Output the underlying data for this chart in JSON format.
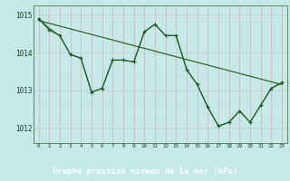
{
  "title": "Graphe pression niveau de la mer (hPa)",
  "bg_color": "#c5e8e8",
  "label_bg": "#2d6b2d",
  "label_fg": "#ffffff",
  "line_color": "#1a5c1a",
  "grid_h_color": "#d4d4d4",
  "grid_v_color": "#f0b0b0",
  "xlim": [
    -0.5,
    23.5
  ],
  "ylim": [
    1011.6,
    1015.25
  ],
  "yticks": [
    1012,
    1013,
    1014,
    1015
  ],
  "xticks": [
    0,
    1,
    2,
    3,
    4,
    5,
    6,
    7,
    8,
    9,
    10,
    11,
    12,
    13,
    14,
    15,
    16,
    17,
    18,
    19,
    20,
    21,
    22,
    23
  ],
  "trend_x": [
    0,
    23
  ],
  "trend_y": [
    1014.85,
    1013.15
  ],
  "line_jagged_x": [
    0,
    1,
    2,
    3,
    4,
    5,
    6,
    7,
    8,
    9,
    10,
    11,
    12,
    13,
    14,
    15,
    16,
    17,
    18,
    19,
    20,
    21,
    22,
    23
  ],
  "line_jagged_y": [
    1014.9,
    1014.6,
    1014.45,
    1013.95,
    1013.85,
    1012.95,
    1013.05,
    1013.8,
    1013.8,
    1013.75,
    1014.55,
    1014.75,
    1014.45,
    1014.45,
    1013.55,
    1013.15,
    1012.55,
    1012.05,
    1012.15,
    1012.45,
    1012.15,
    1012.6,
    1013.05,
    1013.2
  ],
  "line_jagged2_x": [
    0,
    1,
    2,
    3,
    4,
    5,
    6,
    7,
    8,
    9,
    10,
    11,
    12,
    13,
    14,
    15,
    16,
    17,
    18,
    19,
    20,
    21,
    22,
    23
  ],
  "line_jagged2_y": [
    1014.9,
    1014.65,
    1014.45,
    1013.95,
    1013.85,
    1012.95,
    1013.05,
    1013.8,
    1013.8,
    1013.75,
    1014.55,
    1014.75,
    1014.45,
    1014.45,
    1013.55,
    1013.15,
    1012.55,
    1012.05,
    1012.15,
    1012.45,
    1012.15,
    1012.6,
    1013.05,
    1013.2
  ]
}
